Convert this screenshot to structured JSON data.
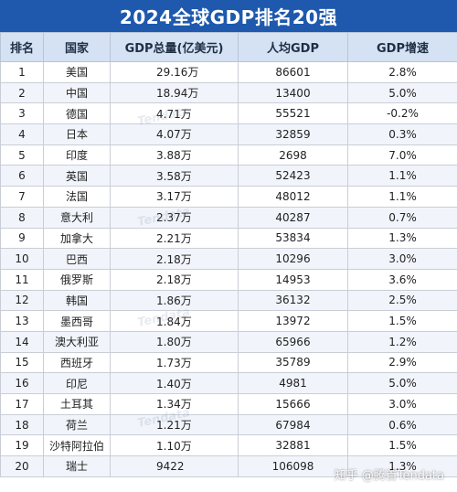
{
  "chart_data": {
    "type": "table",
    "title": "2024全球GDP排名20强",
    "columns": [
      "排名",
      "国家",
      "GDP总量(亿美元)",
      "人均GDP",
      "GDP增速"
    ],
    "rows": [
      [
        "1",
        "美国",
        "29.16万",
        "86601",
        "2.8%"
      ],
      [
        "2",
        "中国",
        "18.94万",
        "13400",
        "5.0%"
      ],
      [
        "3",
        "德国",
        "4.71万",
        "55521",
        "-0.2%"
      ],
      [
        "4",
        "日本",
        "4.07万",
        "32859",
        "0.3%"
      ],
      [
        "5",
        "印度",
        "3.88万",
        "2698",
        "7.0%"
      ],
      [
        "6",
        "英国",
        "3.58万",
        "52423",
        "1.1%"
      ],
      [
        "7",
        "法国",
        "3.17万",
        "48012",
        "1.1%"
      ],
      [
        "8",
        "意大利",
        "2.37万",
        "40287",
        "0.7%"
      ],
      [
        "9",
        "加拿大",
        "2.21万",
        "53834",
        "1.3%"
      ],
      [
        "10",
        "巴西",
        "2.18万",
        "10296",
        "3.0%"
      ],
      [
        "11",
        "俄罗斯",
        "2.18万",
        "14953",
        "3.6%"
      ],
      [
        "12",
        "韩国",
        "1.86万",
        "36132",
        "2.5%"
      ],
      [
        "13",
        "墨西哥",
        "1.84万",
        "13972",
        "1.5%"
      ],
      [
        "14",
        "澳大利亚",
        "1.80万",
        "65966",
        "1.2%"
      ],
      [
        "15",
        "西班牙",
        "1.73万",
        "35789",
        "2.9%"
      ],
      [
        "16",
        "印尼",
        "1.40万",
        "4981",
        "5.0%"
      ],
      [
        "17",
        "土耳其",
        "1.34万",
        "15666",
        "3.0%"
      ],
      [
        "18",
        "荷兰",
        "1.21万",
        "67984",
        "0.6%"
      ],
      [
        "19",
        "沙特阿拉伯",
        "1.10万",
        "32881",
        "1.5%"
      ],
      [
        "20",
        "瑞士",
        "9422",
        "106098",
        "1.3%"
      ]
    ]
  },
  "watermark": {
    "text": "知乎 @腾首Tendata",
    "faint": "Tendata"
  },
  "colors": {
    "title_bg": "#1e59ad",
    "header_bg": "#d5e2f3",
    "stripe_bg": "#f1f5fb"
  }
}
